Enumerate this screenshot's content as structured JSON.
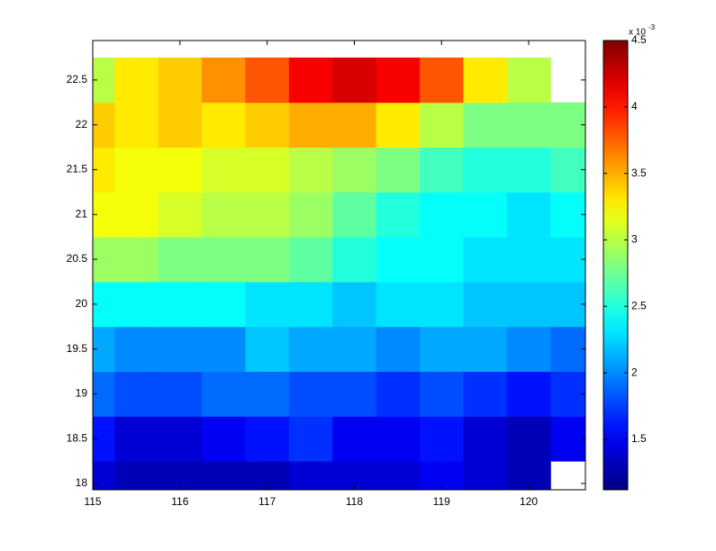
{
  "chart_data": {
    "type": "heatmap",
    "x": [
      115,
      115.5,
      116,
      116.5,
      117,
      117.5,
      118,
      118.5,
      119,
      119.5,
      120,
      120.5
    ],
    "y": [
      18,
      18.5,
      19,
      19.5,
      20,
      20.5,
      21,
      21.5,
      22,
      22.5
    ],
    "z": [
      [
        1.4,
        1.3,
        1.3,
        1.3,
        1.3,
        1.4,
        1.4,
        1.4,
        1.5,
        1.4,
        1.3,
        null
      ],
      [
        1.6,
        1.4,
        1.4,
        1.5,
        1.6,
        1.7,
        1.5,
        1.5,
        1.6,
        1.4,
        1.3,
        1.5
      ],
      [
        1.9,
        1.8,
        1.8,
        1.9,
        1.9,
        1.8,
        1.8,
        1.7,
        1.8,
        1.7,
        1.6,
        1.7
      ],
      [
        2.1,
        2.0,
        2.0,
        2.0,
        2.2,
        2.1,
        2.1,
        2.0,
        2.1,
        2.1,
        2.0,
        1.9
      ],
      [
        2.4,
        2.4,
        2.4,
        2.4,
        2.3,
        2.3,
        2.2,
        2.3,
        2.3,
        2.2,
        2.2,
        2.2
      ],
      [
        2.9,
        2.9,
        2.8,
        2.8,
        2.8,
        2.7,
        2.5,
        2.4,
        2.4,
        2.3,
        2.3,
        2.3
      ],
      [
        3.2,
        3.2,
        3.1,
        3.0,
        3.0,
        2.9,
        2.7,
        2.5,
        2.4,
        2.4,
        2.3,
        2.4
      ],
      [
        3.3,
        3.2,
        3.2,
        3.1,
        3.1,
        3.0,
        2.9,
        2.8,
        2.6,
        2.5,
        2.5,
        2.6
      ],
      [
        3.4,
        3.3,
        3.4,
        3.3,
        3.4,
        3.5,
        3.5,
        3.3,
        3.0,
        2.8,
        2.8,
        2.8
      ],
      [
        3.0,
        3.3,
        3.4,
        3.6,
        3.8,
        4.1,
        4.2,
        4.1,
        3.8,
        3.3,
        3.0,
        null
      ]
    ],
    "colormap": "jet",
    "xlim": [
      115,
      120.65
    ],
    "xticks": [
      115,
      116,
      117,
      118,
      119,
      120
    ],
    "ylim": [
      17.93,
      22.94
    ],
    "yticks": [
      18,
      18.5,
      19,
      19.5,
      20,
      20.5,
      21,
      21.5,
      22,
      22.5
    ],
    "clim": [
      1.12,
      4.5
    ],
    "cticks": [
      1.5,
      2,
      2.5,
      3,
      3.5,
      4,
      4.5
    ],
    "colorbar_multiplier": "x 10",
    "colorbar_exponent": "-3"
  }
}
